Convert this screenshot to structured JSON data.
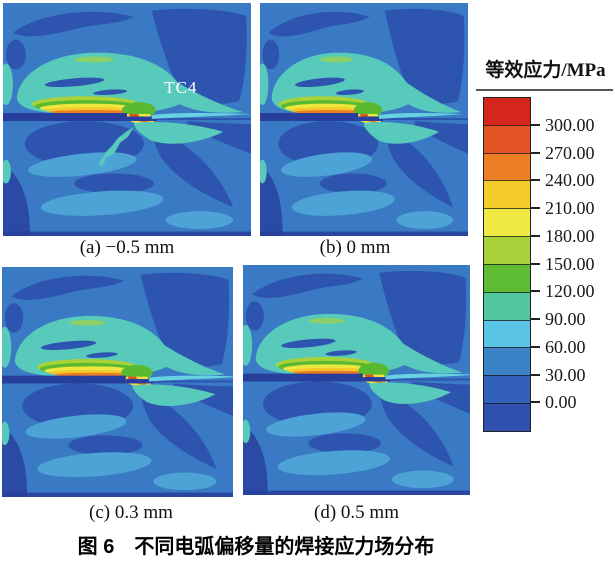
{
  "figure": {
    "caption": "图 6　不同电弧偏移量的焊接应力场分布",
    "panels": [
      {
        "id": "a",
        "label": "(a) −0.5 mm",
        "annotation": "TC4",
        "step_shift": 0
      },
      {
        "id": "b",
        "label": "(b) 0 mm",
        "annotation": "",
        "step_shift": -7
      },
      {
        "id": "c",
        "label": "(c) 0.3 mm",
        "annotation": "",
        "step_shift": 9
      },
      {
        "id": "d",
        "label": "(d) 0.5 mm",
        "annotation": "",
        "step_shift": 7
      }
    ],
    "legend": {
      "title": "等效应力/MPa",
      "tick_labels": [
        "300.00",
        "270.00",
        "240.00",
        "210.00",
        "180.00",
        "150.00",
        "120.00",
        "90.00",
        "60.00",
        "30.00",
        "0.00"
      ],
      "segment_colors": [
        "#d6251d",
        "#e35424",
        "#ed7e23",
        "#f3cb2b",
        "#eeea43",
        "#a9d23a",
        "#5dbc31",
        "#52c79e",
        "#5ac4e6",
        "#3c82c6",
        "#3361b9",
        "#2f50ae"
      ]
    },
    "palette": {
      "bg": "#3a79c3",
      "dark": "#2d55af",
      "navy": "#273e9c",
      "teal": "#57cabc",
      "cyan": "#68d2e2",
      "lightblue": "#4da2d6",
      "green": "#59ba31",
      "ygreen": "#a8d23a",
      "yellow": "#eee73f",
      "gold": "#f3c92b",
      "orange": "#ec7d22",
      "redorange": "#e1501f"
    }
  },
  "chart_data": {
    "type": "heatmap",
    "title": "图 6　不同电弧偏移量的焊接应力场分布",
    "colorbar_label": "等效应力/MPa",
    "colorbar_ticks": [
      300.0,
      270.0,
      240.0,
      210.0,
      180.0,
      150.0,
      120.0,
      90.0,
      60.0,
      30.0,
      0.0
    ],
    "colorbar_segment_colors": [
      "#d6251d",
      "#e35424",
      "#ed7e23",
      "#f3cb2b",
      "#eeea43",
      "#a9d23a",
      "#5dbc31",
      "#52c79e",
      "#5ac4e6",
      "#3c82c6",
      "#3361b9",
      "#2f50ae"
    ],
    "value_range_mpa": [
      0,
      300
    ],
    "panels": [
      {
        "label": "(a) −0.5 mm",
        "arc_offset_mm": -0.5
      },
      {
        "label": "(b) 0 mm",
        "arc_offset_mm": 0
      },
      {
        "label": "(c) 0.3 mm",
        "arc_offset_mm": 0.3
      },
      {
        "label": "(d) 0.5 mm",
        "arc_offset_mm": 0.5
      }
    ],
    "annotations": [
      "TC4"
    ],
    "legend_position": "right"
  }
}
